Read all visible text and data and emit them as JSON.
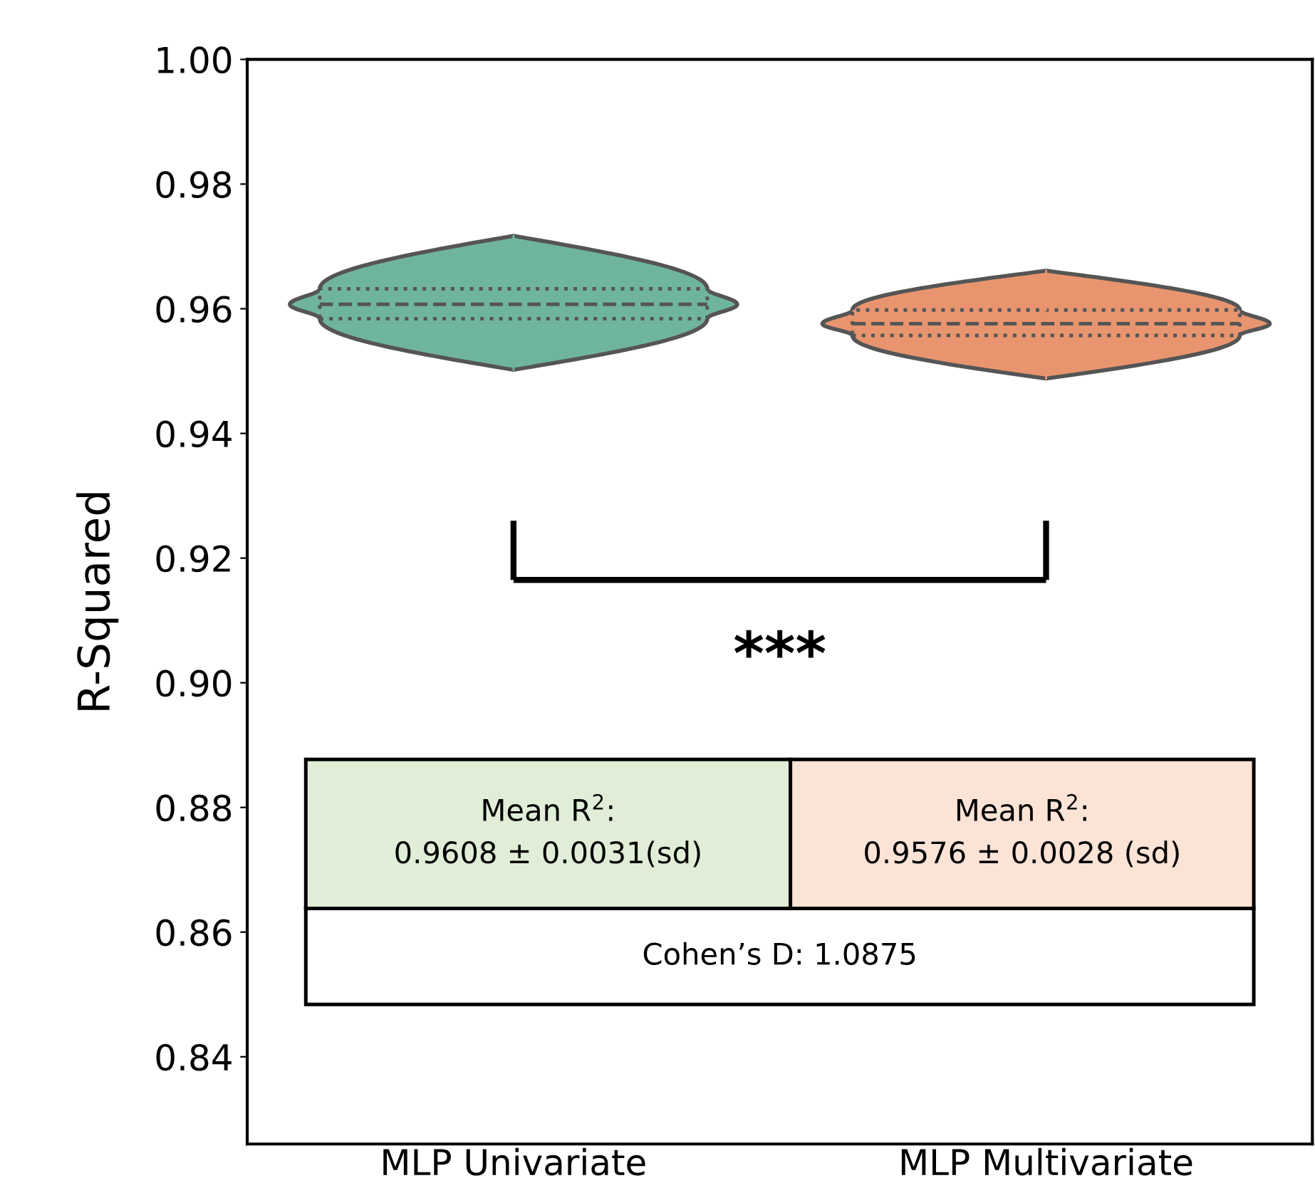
{
  "chart_data": {
    "type": "box",
    "ylabel": "R-Squared",
    "categories": [
      "MLP Univariate",
      "MLP Multivariate"
    ],
    "series": [
      {
        "color": "#6fb59c",
        "boxes": [
          {
            "low": 0.9502,
            "q1": 0.9584,
            "median": 0.9607,
            "q3": 0.9632,
            "high": 0.9717
          },
          null
        ]
      },
      {
        "color": "#e8956f",
        "boxes": [
          null,
          {
            "low": 0.9488,
            "q1": 0.9557,
            "median": 0.9576,
            "q3": 0.9598,
            "high": 0.9661
          }
        ]
      }
    ],
    "ylim": [
      0.826,
      1.0
    ],
    "yticks": [
      {
        "value": 0.84,
        "label": "0.84"
      },
      {
        "value": 0.86,
        "label": "0.86"
      },
      {
        "value": 0.88,
        "label": "0.88"
      },
      {
        "value": 0.9,
        "label": "0.90"
      },
      {
        "value": 0.92,
        "label": "0.92"
      },
      {
        "value": 0.94,
        "label": "0.94"
      },
      {
        "value": 0.96,
        "label": "0.96"
      },
      {
        "value": 0.98,
        "label": "0.98"
      },
      {
        "value": 1.0,
        "label": "1.00"
      }
    ],
    "grid": false,
    "annotations": [
      "***",
      "Mean R$^{2}$:\n0.9608 ± 0.0031(sd)",
      "Mean R$^{2}$:\n0.9576 ± 0.0028 (sd)",
      "Cohen’s D: 1.0875"
    ]
  }
}
